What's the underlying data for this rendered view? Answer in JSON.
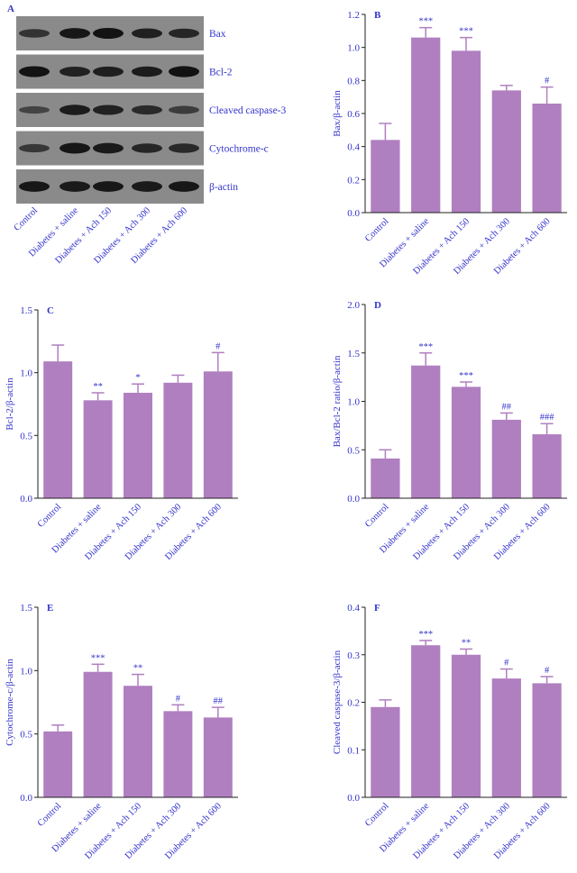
{
  "panel_a": {
    "letter": "A",
    "proteins": [
      "Bax",
      "Bcl-2",
      "Cleaved caspase-3",
      "Cytochrome-c",
      "β-actin"
    ],
    "lanes": [
      "Control",
      "Diabetes + saline",
      "Diabetes + Ach 150",
      "Diabetes + Ach 300",
      "Diabetes + Ach 600"
    ],
    "band_intensity": [
      [
        0.55,
        0.9,
        0.95,
        0.8,
        0.72
      ],
      [
        0.95,
        0.78,
        0.82,
        0.85,
        0.98
      ],
      [
        0.35,
        0.85,
        0.78,
        0.68,
        0.45
      ],
      [
        0.5,
        0.92,
        0.88,
        0.72,
        0.7
      ],
      [
        0.9,
        0.88,
        0.9,
        0.88,
        0.9
      ]
    ]
  },
  "colors": {
    "bar": "#b07fc0",
    "text": "#3333cc",
    "axis": "#222222",
    "blot_bg": "#8a8a8a",
    "band": "#101010"
  },
  "chart_data": [
    {
      "panel": "B",
      "type": "bar",
      "ylabel": "Bax/β-actin",
      "categories": [
        "Control",
        "Diabetes + saline",
        "Diabetes + Ach 150",
        "Diabetes + Ach 300",
        "Diabetes + Ach 600"
      ],
      "values": [
        0.44,
        1.06,
        0.98,
        0.74,
        0.66
      ],
      "errors": [
        0.1,
        0.06,
        0.08,
        0.03,
        0.1
      ],
      "annotations": [
        "",
        "***",
        "***",
        "",
        "#"
      ],
      "ylim": [
        0,
        1.2
      ],
      "yticks": [
        "0.0",
        "0.2",
        "0.4",
        "0.6",
        "0.8",
        "1.0",
        "1.2"
      ]
    },
    {
      "panel": "C",
      "type": "bar",
      "ylabel": "Bcl-2/β-actin",
      "categories": [
        "Control",
        "Diabetes + saline",
        "Diabetes + Ach 150",
        "Diabetes + Ach 300",
        "Diabetes + Ach 600"
      ],
      "values": [
        1.09,
        0.78,
        0.84,
        0.92,
        1.01
      ],
      "errors": [
        0.13,
        0.06,
        0.07,
        0.06,
        0.15
      ],
      "annotations": [
        "",
        "**",
        "*",
        "",
        "#"
      ],
      "ylim": [
        0,
        1.5
      ],
      "yticks": [
        "0.0",
        "0.5",
        "1.0",
        "1.5"
      ]
    },
    {
      "panel": "D",
      "type": "bar",
      "ylabel": "Bax/Bcl-2 ratio/β-actin",
      "categories": [
        "Control",
        "Diabetes + saline",
        "Diabetes + Ach 150",
        "Diabetes +  Ach 300",
        "Diabetes + Ach 600"
      ],
      "values": [
        0.41,
        1.37,
        1.15,
        0.81,
        0.66
      ],
      "errors": [
        0.09,
        0.13,
        0.05,
        0.07,
        0.11
      ],
      "annotations": [
        "",
        "***",
        "***",
        "##",
        "###"
      ],
      "ylim": [
        0,
        2.0
      ],
      "yticks": [
        "0.0",
        "0.5",
        "1.0",
        "1.5",
        "2.0"
      ]
    },
    {
      "panel": "E",
      "type": "bar",
      "ylabel": "Cytochrome-c/β-actin",
      "categories": [
        "Control",
        "Diabetes + saline",
        "Diabetes + Ach 150",
        "Diabetes + Ach 300",
        "Diabetes + Ach 600"
      ],
      "values": [
        0.52,
        0.99,
        0.88,
        0.68,
        0.63
      ],
      "errors": [
        0.05,
        0.06,
        0.09,
        0.05,
        0.08
      ],
      "annotations": [
        "",
        "***",
        "**",
        "#",
        "##"
      ],
      "ylim": [
        0,
        1.5
      ],
      "yticks": [
        "0.0",
        "0.5",
        "1.0",
        "1.5"
      ]
    },
    {
      "panel": "F",
      "type": "bar",
      "ylabel": "Cleaved caspase-3/β-actin",
      "categories": [
        "Control",
        "Diabetes + saline",
        "Diabetes + Ach 150",
        "Diabetes + Ach 300",
        "Diabetes + Ach 600"
      ],
      "values": [
        0.19,
        0.32,
        0.3,
        0.25,
        0.24
      ],
      "errors": [
        0.015,
        0.01,
        0.012,
        0.02,
        0.014
      ],
      "annotations": [
        "",
        "***",
        "**",
        "#",
        "#"
      ],
      "ylim": [
        0,
        0.4
      ],
      "yticks": [
        "0.0",
        "0.1",
        "0.2",
        "0.3",
        "0.4"
      ]
    }
  ]
}
